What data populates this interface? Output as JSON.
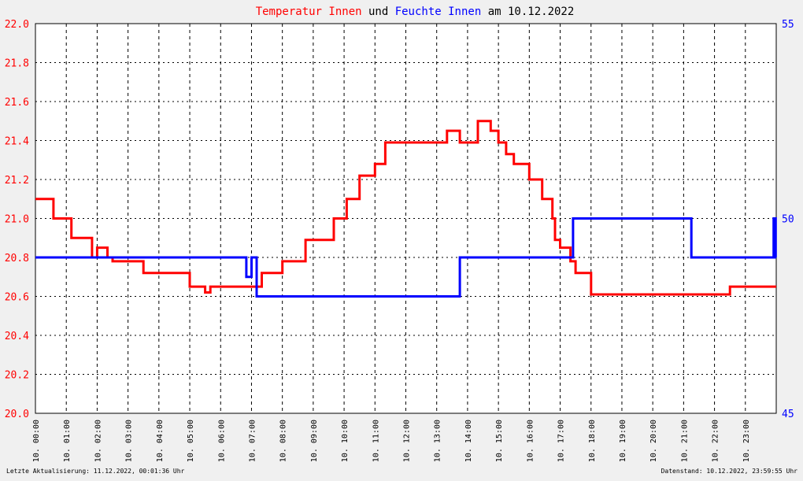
{
  "title": {
    "part1": "Temperatur Innen",
    "part2": " und ",
    "part3": "Feuchte Innen",
    "part4": " am 10.12.2022"
  },
  "footer": {
    "left": "Letzte Aktualisierung: 11.12.2022, 00:01:36 Uhr",
    "right": "Datenstand: 10.12.2022, 23:59:55 Uhr"
  },
  "colors": {
    "temperature": "#ff0000",
    "humidity": "#0000ff",
    "background": "#f0f0f0",
    "plot_background": "#ffffff",
    "grid": "#000000"
  },
  "chart_data": {
    "type": "line",
    "grid": true,
    "x_range": [
      "00:00",
      "24:00"
    ],
    "x_tick_labels": [
      "10. 00:00",
      "10. 01:00",
      "10. 02:00",
      "10. 03:00",
      "10. 04:00",
      "10. 05:00",
      "10. 06:00",
      "10. 07:00",
      "10. 08:00",
      "10. 09:00",
      "10. 10:00",
      "10. 11:00",
      "10. 12:00",
      "10. 13:00",
      "10. 14:00",
      "10. 15:00",
      "10. 16:00",
      "10. 17:00",
      "10. 18:00",
      "10. 19:00",
      "10. 20:00",
      "10. 21:00",
      "10. 22:00",
      "10. 23:00"
    ],
    "y_left": {
      "min": 20.0,
      "max": 22.0,
      "tick_labels": [
        "20.0",
        "20.2",
        "20.4",
        "20.6",
        "20.8",
        "21.0",
        "21.2",
        "21.4",
        "21.6",
        "21.8",
        "22.0"
      ]
    },
    "y_right": {
      "min": 45,
      "max": 55,
      "tick_labels": [
        "45",
        "50",
        "55"
      ]
    },
    "series": [
      {
        "name": "Temperatur Innen",
        "axis": "left",
        "x": [
          "00:00",
          "00:30",
          "00:35",
          "00:40",
          "00:45",
          "01:10",
          "01:15",
          "01:50",
          "02:00",
          "02:20",
          "02:30",
          "03:20",
          "03:30",
          "03:45",
          "04:50",
          "05:00",
          "05:30",
          "05:40",
          "06:20",
          "06:40",
          "07:00",
          "07:20",
          "07:35",
          "08:00",
          "08:40",
          "08:45",
          "09:35",
          "09:40",
          "09:55",
          "10:05",
          "10:20",
          "10:30",
          "11:00",
          "11:10",
          "11:20",
          "11:40",
          "12:40",
          "12:45",
          "13:20",
          "13:45",
          "14:00",
          "14:20",
          "14:40",
          "14:45",
          "15:00",
          "15:15",
          "15:30",
          "15:45",
          "16:00",
          "16:25",
          "16:30",
          "16:45",
          "16:50",
          "17:00",
          "17:20",
          "17:30",
          "17:50",
          "18:00",
          "19:50",
          "19:55",
          "22:10",
          "22:30",
          "23:00",
          "23:30",
          "23:59"
        ],
        "values": [
          21.1,
          21.1,
          21.0,
          21.0,
          21.0,
          20.9,
          20.9,
          20.8,
          20.85,
          20.8,
          20.78,
          20.78,
          20.72,
          20.72,
          20.72,
          20.65,
          20.62,
          20.65,
          20.65,
          20.65,
          20.65,
          20.72,
          20.72,
          20.78,
          20.78,
          20.89,
          20.89,
          21.0,
          21.0,
          21.1,
          21.1,
          21.22,
          21.28,
          21.28,
          21.39,
          21.39,
          21.39,
          21.39,
          21.45,
          21.39,
          21.39,
          21.5,
          21.5,
          21.45,
          21.39,
          21.33,
          21.28,
          21.28,
          21.2,
          21.1,
          21.1,
          21.0,
          20.89,
          20.85,
          20.78,
          20.72,
          20.72,
          20.61,
          20.61,
          20.61,
          20.61,
          20.65,
          20.65,
          20.65,
          20.65
        ]
      },
      {
        "name": "Feuchte Innen",
        "axis": "right",
        "x": [
          "00:00",
          "06:35",
          "06:50",
          "07:00",
          "07:10",
          "13:30",
          "13:45",
          "14:40",
          "17:15",
          "17:25",
          "21:05",
          "21:15",
          "23:55",
          "23:59"
        ],
        "values": [
          49,
          49,
          48.5,
          49,
          48,
          48,
          49,
          49,
          49,
          50,
          50,
          49,
          50,
          49
        ]
      }
    ]
  }
}
